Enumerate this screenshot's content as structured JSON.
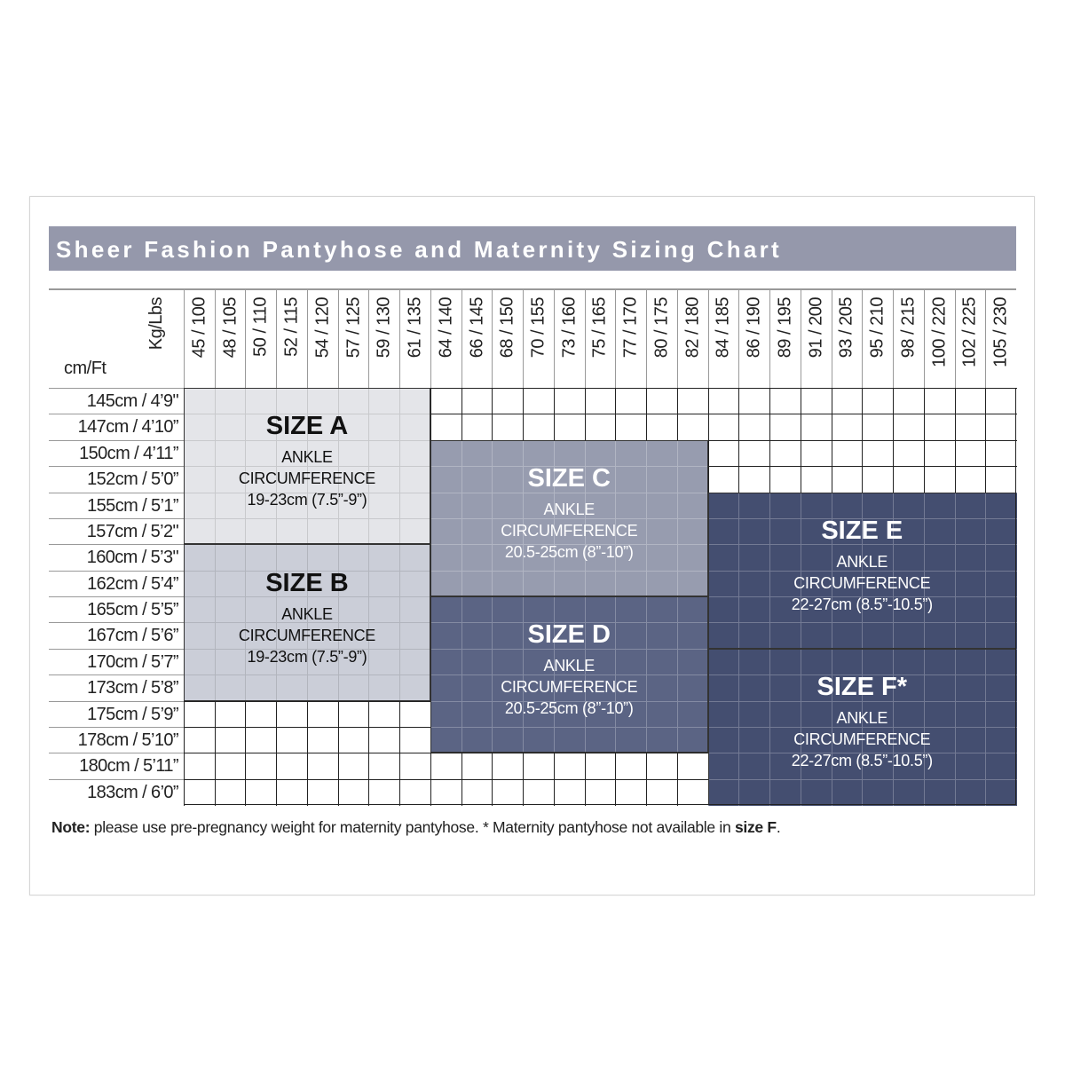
{
  "chart_data": {
    "type": "table",
    "title": "Sheer Fashion Pantyhose and Maternity Sizing Chart",
    "column_axis_label": "Kg/Lbs",
    "row_axis_label": "cm/Ft",
    "weights": [
      "45 / 100",
      "48 / 105",
      "50 / 110",
      "52 / 115",
      "54 / 120",
      "57 / 125",
      "59 / 130",
      "61 / 135",
      "64 / 140",
      "66 / 145",
      "68 / 150",
      "70 / 155",
      "73 / 160",
      "75 / 165",
      "77 / 170",
      "80 / 175",
      "82 / 180",
      "84 / 185",
      "86 / 190",
      "89 / 195",
      "91 / 200",
      "93 / 205",
      "95 / 210",
      "98 / 215",
      "100 / 220",
      "102 / 225",
      "105 / 230"
    ],
    "heights": [
      "145cm / 4’9\"",
      "147cm / 4’10”",
      "150cm / 4’11”",
      "152cm / 5’0”",
      "155cm / 5’1”",
      "157cm / 5’2\"",
      "160cm / 5’3\"",
      "162cm / 5’4”",
      "165cm / 5’5”",
      "167cm / 5’6”",
      "170cm / 5’7”",
      "173cm / 5’8”",
      "175cm / 5’9”",
      "178cm / 5’10”",
      "180cm / 5’11”",
      "183cm / 6’0”"
    ],
    "sizes": [
      {
        "name": "SIZE A",
        "line1": "ANKLE",
        "line2": "CIRCUMFERENCE",
        "line3": "19-23cm (7.5”-9”)",
        "weight_from": "45 / 100",
        "weight_to": "61 / 135",
        "height_from": "145cm / 4’9\"",
        "height_to": "157cm / 5’2\"",
        "color": "#e4e5e9",
        "text_color": "#111111"
      },
      {
        "name": "SIZE B",
        "line1": "ANKLE",
        "line2": "CIRCUMFERENCE",
        "line3": "19-23cm (7.5”-9”)",
        "weight_from": "45 / 100",
        "weight_to": "61 / 135",
        "height_from": "160cm / 5’3\"",
        "height_to": "173cm / 5’8”",
        "color": "#cbced8",
        "text_color": "#111111"
      },
      {
        "name": "SIZE C",
        "line1": "ANKLE",
        "line2": "CIRCUMFERENCE",
        "line3": "20.5-25cm (8”-10”)",
        "weight_from": "64 / 140",
        "weight_to": "82 / 180",
        "height_from": "150cm / 4’11”",
        "height_to": "162cm / 5’4”",
        "color": "#979caf",
        "text_color": "#ffffff"
      },
      {
        "name": "SIZE D",
        "line1": "ANKLE",
        "line2": "CIRCUMFERENCE",
        "line3": "20.5-25cm (8”-10”)",
        "weight_from": "64 / 140",
        "weight_to": "82 / 180",
        "height_from": "165cm / 5’5”",
        "height_to": "178cm / 5’10”",
        "color": "#5b6484",
        "text_color": "#ffffff"
      },
      {
        "name": "SIZE E",
        "line1": "ANKLE",
        "line2": "CIRCUMFERENCE",
        "line3": "22-27cm (8.5”-10.5”)",
        "weight_from": "84 / 185",
        "weight_to": "105 / 230",
        "height_from": "155cm / 5’1”",
        "height_to": "167cm / 5’6”",
        "color": "#444e70",
        "text_color": "#ffffff"
      },
      {
        "name": "SIZE F*",
        "line1": "ANKLE",
        "line2": "CIRCUMFERENCE",
        "line3": "22-27cm (8.5”-10.5”)",
        "weight_from": "84 / 185",
        "weight_to": "105 / 230",
        "height_from": "170cm / 5’7”",
        "height_to": "183cm / 6’0”",
        "color": "#444e70",
        "text_color": "#ffffff"
      }
    ],
    "title_bar_color": "#9598ab"
  },
  "note": {
    "bold1": "Note:",
    "text1": " please use pre-pregnancy weight for maternity pantyhose. * Maternity pantyhose not available in ",
    "bold2": "size F",
    "text2": "."
  }
}
